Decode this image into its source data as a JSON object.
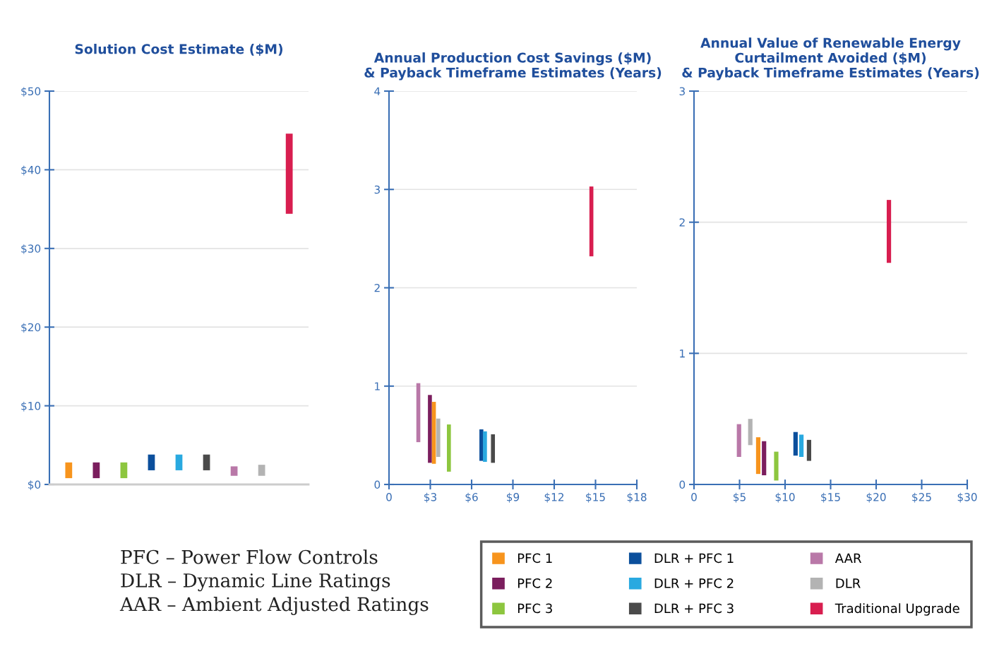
{
  "chart_data": [
    {
      "type": "bar",
      "title": "Solution Cost Estimate ($M)",
      "categories": [
        null,
        null,
        null,
        null,
        null,
        null,
        null,
        null,
        null
      ],
      "ylim": [
        0,
        50
      ],
      "yticks": [
        {
          "value": 0,
          "label": "$0"
        },
        {
          "value": 10,
          "label": "$10"
        },
        {
          "value": 20,
          "label": "$20"
        },
        {
          "value": 30,
          "label": "$30"
        },
        {
          "value": 40,
          "label": "$40"
        },
        {
          "value": 50,
          "label": "$50"
        }
      ],
      "tick_labels": "y",
      "grid": "y",
      "legend": "bottom right",
      "annotations": [
        "PFC – Power Flow Controls",
        "DLR – Dynamic Line Ratings",
        "AAR – Ambient Adjusted Ratings"
      ],
      "series": [
        {
          "name": "PFC 1",
          "color": "#f7941d",
          "values": [
            2.0,
            null,
            null,
            null,
            null,
            null,
            null,
            null,
            null
          ],
          "base": [
            0.8,
            null,
            null,
            null,
            null,
            null,
            null,
            null,
            null
          ]
        },
        {
          "name": "PFC 2",
          "color": "#7b1e5e",
          "values": [
            null,
            2.0,
            null,
            null,
            null,
            null,
            null,
            null,
            null
          ],
          "base": [
            null,
            0.8,
            null,
            null,
            null,
            null,
            null,
            null,
            null
          ]
        },
        {
          "name": "PFC 3",
          "color": "#8dc63f",
          "values": [
            null,
            null,
            2.0,
            null,
            null,
            null,
            null,
            null,
            null
          ],
          "base": [
            null,
            null,
            0.8,
            null,
            null,
            null,
            null,
            null,
            null
          ]
        },
        {
          "name": "DLR + PFC 1",
          "color": "#0b4f9c",
          "values": [
            null,
            null,
            null,
            2.0,
            null,
            null,
            null,
            null,
            null
          ],
          "base": [
            null,
            null,
            null,
            1.8,
            null,
            null,
            null,
            null,
            null
          ]
        },
        {
          "name": "DLR + PFC 2",
          "color": "#29a9e0",
          "values": [
            null,
            null,
            null,
            null,
            2.0,
            null,
            null,
            null,
            null
          ],
          "base": [
            null,
            null,
            null,
            null,
            1.8,
            null,
            null,
            null,
            null
          ]
        },
        {
          "name": "DLR + PFC 3",
          "color": "#4a4a4a",
          "values": [
            null,
            null,
            null,
            null,
            null,
            2.0,
            null,
            null,
            null
          ],
          "base": [
            null,
            null,
            null,
            null,
            null,
            1.8,
            null,
            null,
            null
          ]
        },
        {
          "name": "AAR",
          "color": "#b978a8",
          "values": [
            null,
            null,
            null,
            null,
            null,
            null,
            1.2,
            null,
            null
          ],
          "base": [
            null,
            null,
            null,
            null,
            null,
            null,
            1.1,
            null,
            null
          ]
        },
        {
          "name": "DLR",
          "color": "#b3b3b3",
          "values": [
            null,
            null,
            null,
            null,
            null,
            null,
            null,
            1.4,
            null
          ],
          "base": [
            null,
            null,
            null,
            null,
            null,
            null,
            null,
            1.1,
            null
          ]
        },
        {
          "name": "Traditional Upgrade",
          "color": "#d81e4f",
          "values": [
            null,
            null,
            null,
            null,
            null,
            null,
            null,
            null,
            10.2
          ],
          "base": [
            null,
            null,
            null,
            null,
            null,
            null,
            null,
            null,
            34.4
          ]
        }
      ]
    },
    {
      "type": "bar",
      "title": "Annual Production Cost Savings ($M)\n& Payback Timeframe Estimates (Years)",
      "xlim": [
        0,
        18
      ],
      "xticks": [
        0,
        {
          "value": 3,
          "label": "$3"
        },
        {
          "value": 6,
          "label": "$6"
        },
        {
          "value": 9,
          "label": "$9"
        },
        {
          "value": 12,
          "label": "$12"
        },
        {
          "value": 15,
          "label": "$15"
        },
        {
          "value": 18,
          "label": "$18"
        }
      ],
      "ylim": [
        0,
        4
      ],
      "yticks": [
        0,
        1,
        2,
        3,
        4
      ],
      "grid": "y",
      "series": [
        {
          "color": "#b978a8",
          "x": [
            2.13
          ],
          "values": [
            0.6
          ],
          "base": [
            0.43
          ]
        },
        {
          "color": "#7b1e5e",
          "x": [
            2.97
          ],
          "values": [
            0.69
          ],
          "base": [
            0.22
          ]
        },
        {
          "color": "#f7941d",
          "x": [
            3.26
          ],
          "values": [
            0.63
          ],
          "base": [
            0.21
          ]
        },
        {
          "color": "#b3b3b3",
          "x": [
            3.58
          ],
          "values": [
            0.39
          ],
          "base": [
            0.28
          ]
        },
        {
          "color": "#8dc63f",
          "x": [
            4.35
          ],
          "values": [
            0.48
          ],
          "base": [
            0.13
          ]
        },
        {
          "color": "#0b4f9c",
          "x": [
            6.71
          ],
          "values": [
            0.32
          ],
          "base": [
            0.24
          ]
        },
        {
          "color": "#29a9e0",
          "x": [
            6.97
          ],
          "values": [
            0.31
          ],
          "base": [
            0.23
          ]
        },
        {
          "color": "#4a4a4a",
          "x": [
            7.55
          ],
          "values": [
            0.29
          ],
          "base": [
            0.22
          ]
        },
        {
          "color": "#d81e4f",
          "x": [
            14.7
          ],
          "values": [
            0.71
          ],
          "base": [
            2.32
          ]
        }
      ]
    },
    {
      "type": "bar",
      "title": "Annual Value of Renewable Energy\nCurtailment Avoided ($M)\n& Payback Timeframe Estimates (Years)",
      "xlim": [
        0,
        30
      ],
      "xticks": [
        0,
        {
          "value": 5,
          "label": "$5"
        },
        {
          "value": 10,
          "label": "$10"
        },
        {
          "value": 15,
          "label": "$15"
        },
        {
          "value": 20,
          "label": "$20"
        },
        {
          "value": 25,
          "label": "$25"
        },
        {
          "value": 30,
          "label": "$30"
        }
      ],
      "ylim": [
        0,
        3
      ],
      "yticks": [
        0,
        1,
        2,
        3
      ],
      "grid": "y",
      "series": [
        {
          "color": "#b978a8",
          "x": [
            4.94
          ],
          "values": [
            0.25
          ],
          "base": [
            0.21
          ]
        },
        {
          "color": "#b3b3b3",
          "x": [
            6.18
          ],
          "values": [
            0.2
          ],
          "base": [
            0.3
          ]
        },
        {
          "color": "#f7941d",
          "x": [
            7.05
          ],
          "values": [
            0.28
          ],
          "base": [
            0.08
          ]
        },
        {
          "color": "#7b1e5e",
          "x": [
            7.69
          ],
          "values": [
            0.26
          ],
          "base": [
            0.07
          ]
        },
        {
          "color": "#8dc63f",
          "x": [
            9.03
          ],
          "values": [
            0.22
          ],
          "base": [
            0.03
          ]
        },
        {
          "color": "#0b4f9c",
          "x": [
            11.15
          ],
          "values": [
            0.18
          ],
          "base": [
            0.22
          ]
        },
        {
          "color": "#29a9e0",
          "x": [
            11.79
          ],
          "values": [
            0.17
          ],
          "base": [
            0.21
          ]
        },
        {
          "color": "#4a4a4a",
          "x": [
            12.63
          ],
          "values": [
            0.16
          ],
          "base": [
            0.18
          ]
        },
        {
          "color": "#d81e4f",
          "x": [
            21.4
          ],
          "values": [
            0.48
          ],
          "base": [
            1.69
          ]
        }
      ]
    }
  ]
}
